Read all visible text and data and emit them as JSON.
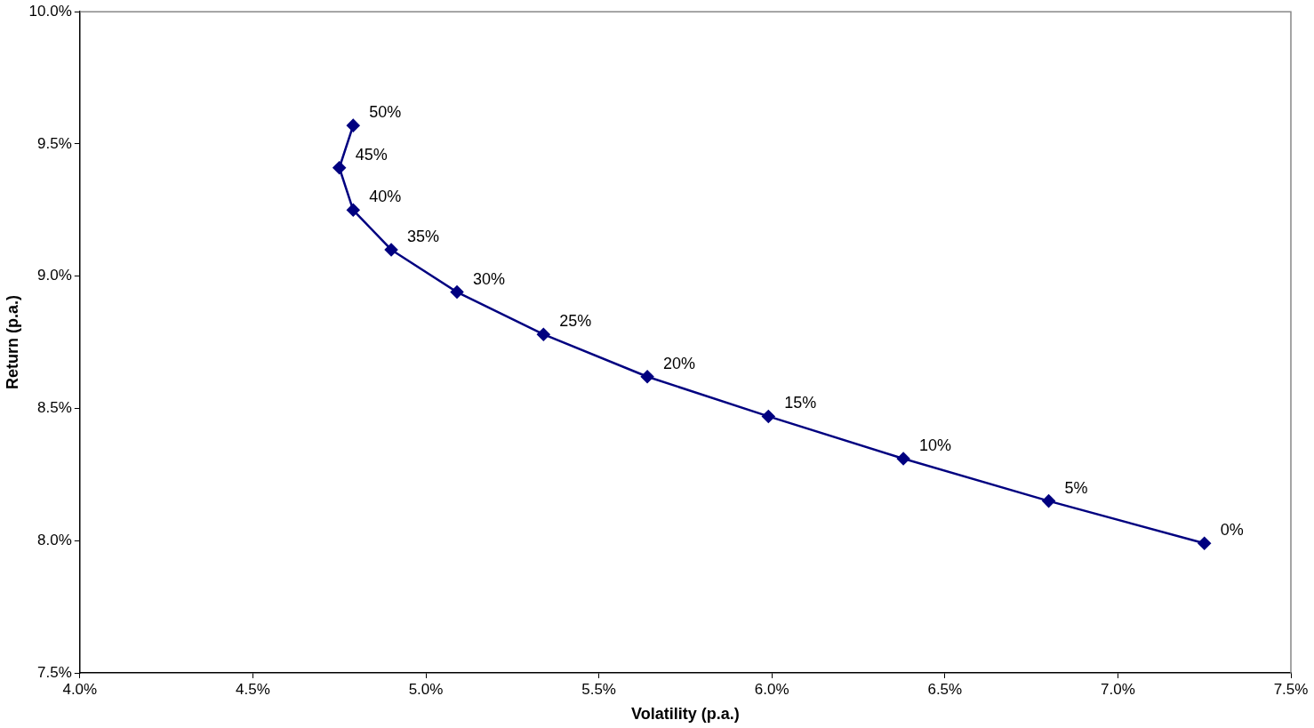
{
  "chart_data": {
    "type": "line",
    "xlabel": "Volatility (p.a.)",
    "ylabel": "Return (p.a.)",
    "x": [
      4.79,
      4.75,
      4.79,
      4.9,
      5.09,
      5.34,
      5.64,
      5.99,
      6.38,
      6.8,
      7.25
    ],
    "series": [
      {
        "color": "#000080",
        "values": [
          9.57,
          9.41,
          9.25,
          9.1,
          8.94,
          8.78,
          8.62,
          8.47,
          8.31,
          8.15,
          7.99
        ]
      }
    ],
    "annotations": [
      {
        "text": "50%",
        "x": 4.79,
        "y": 9.57
      },
      {
        "text": "45%",
        "x": 4.75,
        "y": 9.41
      },
      {
        "text": "40%",
        "x": 4.79,
        "y": 9.25
      },
      {
        "text": "35%",
        "x": 4.9,
        "y": 9.1
      },
      {
        "text": "30%",
        "x": 5.09,
        "y": 8.94
      },
      {
        "text": "25%",
        "x": 5.34,
        "y": 8.78
      },
      {
        "text": "20%",
        "x": 5.64,
        "y": 8.62
      },
      {
        "text": "15%",
        "x": 5.99,
        "y": 8.47
      },
      {
        "text": "10%",
        "x": 6.38,
        "y": 8.31
      },
      {
        "text": "5%",
        "x": 6.8,
        "y": 8.15
      },
      {
        "text": "0%",
        "x": 7.25,
        "y": 7.99
      }
    ],
    "xlim": [
      4.0,
      7.5
    ],
    "ylim": [
      7.5,
      10.0
    ],
    "xticks": [
      {
        "value": 4.0,
        "label": "4.0%"
      },
      {
        "value": 4.5,
        "label": "4.5%"
      },
      {
        "value": 5.0,
        "label": "5.0%"
      },
      {
        "value": 5.5,
        "label": "5.5%"
      },
      {
        "value": 6.0,
        "label": "6.0%"
      },
      {
        "value": 6.5,
        "label": "6.5%"
      },
      {
        "value": 7.0,
        "label": "7.0%"
      },
      {
        "value": 7.5,
        "label": "7.5%"
      }
    ],
    "yticks": [
      {
        "value": 7.5,
        "label": "7.5%"
      },
      {
        "value": 8.0,
        "label": "8.0%"
      },
      {
        "value": 8.5,
        "label": "8.5%"
      },
      {
        "value": 9.0,
        "label": "9.0%"
      },
      {
        "value": 9.5,
        "label": "9.5%"
      },
      {
        "value": 10.0,
        "label": "10.0%"
      }
    ],
    "marker": "diamond",
    "line_style": "solid",
    "grid": false,
    "legend": false
  }
}
